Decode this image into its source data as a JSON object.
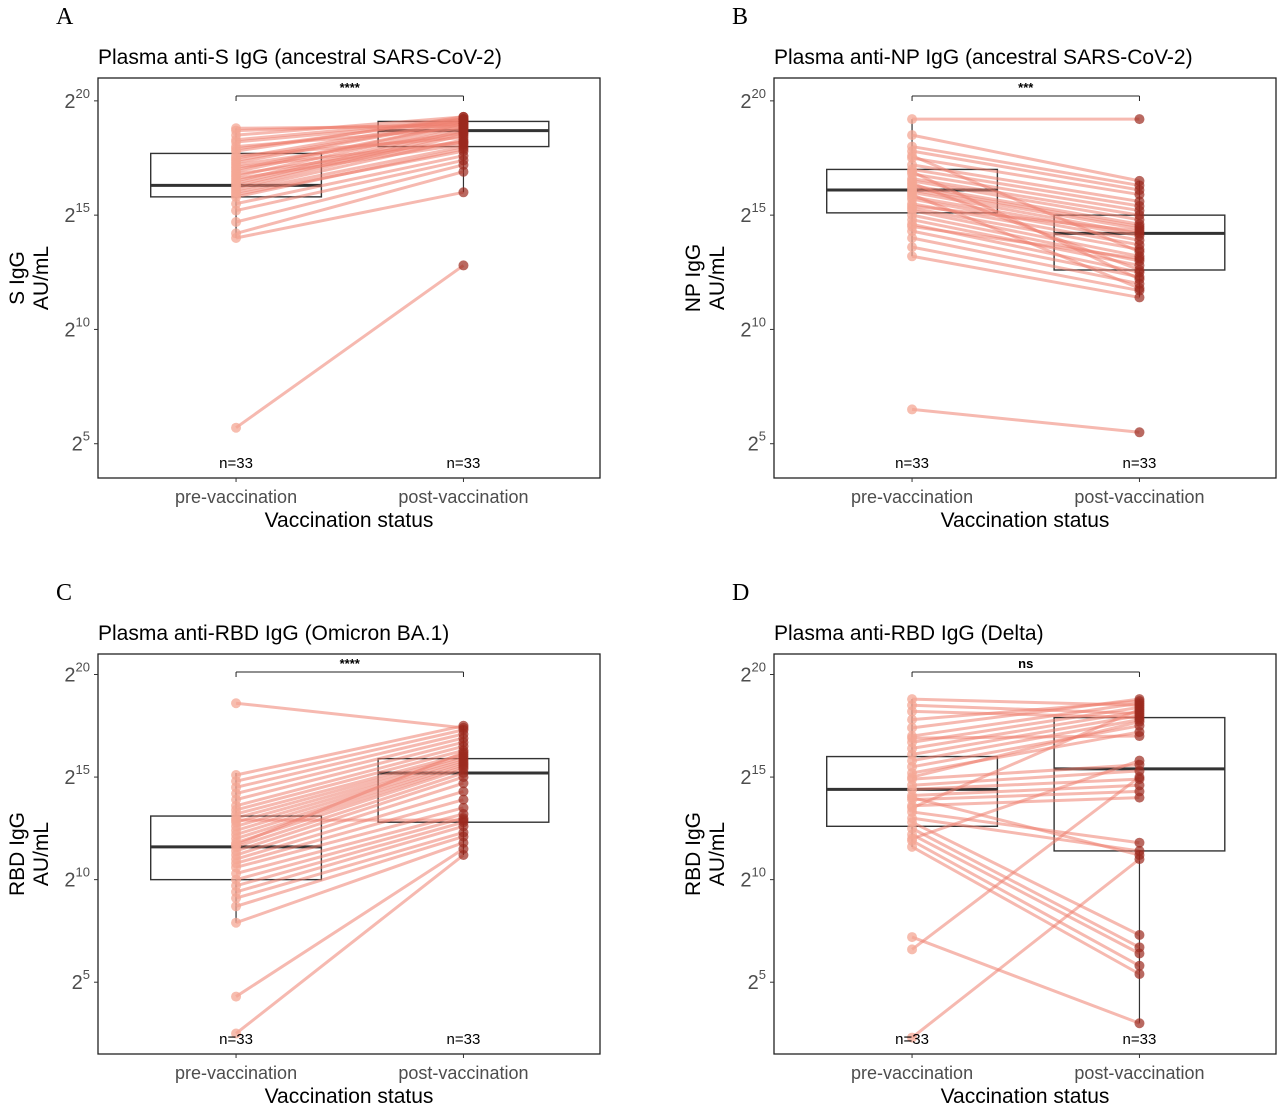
{
  "chart_data": [
    {
      "panel": "A",
      "type": "box",
      "title": "Plasma anti-S IgG (ancestral SARS-CoV-2)",
      "ylabel_line1": "S IgG",
      "ylabel_line2": "AU/mL",
      "xlabel": "Vaccination status",
      "categories": [
        "pre-vaccination",
        "post-vaccination"
      ],
      "y_scale": "log2",
      "ylim_log2": [
        3.5,
        21
      ],
      "y_ticks": [
        {
          "base": "2",
          "exp": "5",
          "log2": 5
        },
        {
          "base": "2",
          "exp": "10",
          "log2": 10
        },
        {
          "base": "2",
          "exp": "15",
          "log2": 15
        },
        {
          "base": "2",
          "exp": "20",
          "log2": 20
        }
      ],
      "n_labels": [
        "n=33",
        "n=33"
      ],
      "significance": "****",
      "boxes": [
        {
          "q1": 15.8,
          "median": 16.3,
          "q3": 17.7
        },
        {
          "q1": 18.0,
          "median": 18.7,
          "q3": 19.1
        }
      ],
      "whiskers": [
        {
          "low": 14.0,
          "high": 18.8
        },
        {
          "low": 16.0,
          "high": 19.4
        }
      ],
      "pairs": [
        [
          5.7,
          12.8
        ],
        [
          14.0,
          16.0
        ],
        [
          14.2,
          16.9
        ],
        [
          14.7,
          17.2
        ],
        [
          15.2,
          17.4
        ],
        [
          15.5,
          17.6
        ],
        [
          15.8,
          17.9
        ],
        [
          16.0,
          18.0
        ],
        [
          16.1,
          18.3
        ],
        [
          16.2,
          18.5
        ],
        [
          16.3,
          18.6
        ],
        [
          16.4,
          18.7
        ],
        [
          16.5,
          18.8
        ],
        [
          16.7,
          18.9
        ],
        [
          16.9,
          19.0
        ],
        [
          17.0,
          19.0
        ],
        [
          17.1,
          18.2
        ],
        [
          17.3,
          19.1
        ],
        [
          17.5,
          19.2
        ],
        [
          17.6,
          18.4
        ],
        [
          17.8,
          19.3
        ],
        [
          17.9,
          19.2
        ],
        [
          18.2,
          19.1
        ],
        [
          18.5,
          19.3
        ],
        [
          18.7,
          19.0
        ],
        [
          18.8,
          18.9
        ],
        [
          16.6,
          18.1
        ],
        [
          15.9,
          17.8
        ],
        [
          17.2,
          18.6
        ],
        [
          16.8,
          18.2
        ],
        [
          18.0,
          18.8
        ],
        [
          17.4,
          19.1
        ],
        [
          18.3,
          19.2
        ]
      ]
    },
    {
      "panel": "B",
      "type": "box",
      "title": "Plasma anti-NP IgG (ancestral SARS-CoV-2)",
      "ylabel_line1": "NP IgG",
      "ylabel_line2": "AU/mL",
      "xlabel": "Vaccination status",
      "categories": [
        "pre-vaccination",
        "post-vaccination"
      ],
      "y_scale": "log2",
      "ylim_log2": [
        3.5,
        21
      ],
      "y_ticks": [
        {
          "base": "2",
          "exp": "5",
          "log2": 5
        },
        {
          "base": "2",
          "exp": "10",
          "log2": 10
        },
        {
          "base": "2",
          "exp": "15",
          "log2": 15
        },
        {
          "base": "2",
          "exp": "20",
          "log2": 20
        }
      ],
      "n_labels": [
        "n=33",
        "n=33"
      ],
      "significance": "***",
      "boxes": [
        {
          "q1": 15.1,
          "median": 16.1,
          "q3": 17.0
        },
        {
          "q1": 12.6,
          "median": 14.2,
          "q3": 15.0
        }
      ],
      "whiskers": [
        {
          "low": 13.2,
          "high": 19.2
        },
        {
          "low": 11.4,
          "high": 16.5
        }
      ],
      "pairs": [
        [
          6.5,
          5.5
        ],
        [
          13.2,
          11.4
        ],
        [
          13.6,
          11.7
        ],
        [
          14.0,
          12.0
        ],
        [
          14.3,
          12.3
        ],
        [
          14.6,
          12.5
        ],
        [
          14.8,
          12.8
        ],
        [
          15.0,
          13.0
        ],
        [
          15.2,
          13.2
        ],
        [
          15.3,
          13.5
        ],
        [
          15.5,
          13.7
        ],
        [
          15.7,
          13.9
        ],
        [
          15.8,
          14.1
        ],
        [
          16.0,
          14.2
        ],
        [
          16.1,
          14.4
        ],
        [
          16.2,
          14.5
        ],
        [
          16.3,
          14.6
        ],
        [
          16.5,
          14.8
        ],
        [
          16.6,
          15.0
        ],
        [
          16.8,
          15.2
        ],
        [
          17.0,
          15.4
        ],
        [
          17.2,
          15.6
        ],
        [
          17.5,
          15.9
        ],
        [
          17.8,
          16.1
        ],
        [
          18.0,
          16.3
        ],
        [
          18.5,
          16.5
        ],
        [
          19.2,
          19.2
        ],
        [
          16.9,
          12.2
        ],
        [
          15.4,
          14.3
        ],
        [
          14.5,
          13.1
        ],
        [
          16.4,
          12.6
        ],
        [
          17.6,
          13.4
        ],
        [
          15.9,
          11.8
        ]
      ]
    },
    {
      "panel": "C",
      "type": "box",
      "title": "Plasma anti-RBD IgG (Omicron BA.1)",
      "ylabel_line1": "RBD IgG",
      "ylabel_line2": "AU/mL",
      "xlabel": "Vaccination status",
      "categories": [
        "pre-vaccination",
        "post-vaccination"
      ],
      "y_scale": "log2",
      "ylim_log2": [
        1.5,
        21
      ],
      "y_ticks": [
        {
          "base": "2",
          "exp": "5",
          "log2": 5
        },
        {
          "base": "2",
          "exp": "10",
          "log2": 10
        },
        {
          "base": "2",
          "exp": "15",
          "log2": 15
        },
        {
          "base": "2",
          "exp": "20",
          "log2": 20
        }
      ],
      "n_labels": [
        "n=33",
        "n=33"
      ],
      "significance": "****",
      "boxes": [
        {
          "q1": 10.0,
          "median": 11.6,
          "q3": 13.1
        },
        {
          "q1": 12.8,
          "median": 15.2,
          "q3": 15.9
        }
      ],
      "whiskers": [
        {
          "low": 7.9,
          "high": 15.2
        },
        {
          "low": 11.2,
          "high": 17.5
        }
      ],
      "pairs": [
        [
          2.5,
          11.2
        ],
        [
          4.3,
          11.5
        ],
        [
          7.9,
          11.8
        ],
        [
          8.7,
          12.1
        ],
        [
          9.1,
          12.3
        ],
        [
          9.4,
          12.6
        ],
        [
          9.7,
          12.8
        ],
        [
          10.0,
          13.0
        ],
        [
          10.3,
          13.2
        ],
        [
          10.6,
          13.5
        ],
        [
          10.8,
          13.9
        ],
        [
          11.0,
          14.3
        ],
        [
          11.2,
          14.7
        ],
        [
          11.4,
          15.0
        ],
        [
          11.6,
          15.2
        ],
        [
          11.8,
          15.4
        ],
        [
          12.0,
          15.5
        ],
        [
          12.2,
          15.6
        ],
        [
          12.4,
          15.7
        ],
        [
          12.6,
          15.8
        ],
        [
          12.8,
          15.9
        ],
        [
          13.0,
          16.0
        ],
        [
          13.2,
          16.1
        ],
        [
          13.4,
          16.3
        ],
        [
          13.6,
          16.5
        ],
        [
          13.9,
          16.7
        ],
        [
          14.2,
          16.9
        ],
        [
          14.5,
          17.1
        ],
        [
          14.8,
          17.3
        ],
        [
          15.1,
          17.5
        ],
        [
          18.6,
          17.4
        ],
        [
          12.9,
          12.9
        ],
        [
          11.7,
          16.2
        ]
      ]
    },
    {
      "panel": "D",
      "type": "box",
      "title": "Plasma anti-RBD IgG (Delta)",
      "ylabel_line1": "RBD IgG",
      "ylabel_line2": "AU/mL",
      "xlabel": "Vaccination status",
      "categories": [
        "pre-vaccination",
        "post-vaccination"
      ],
      "y_scale": "log2",
      "ylim_log2": [
        1.5,
        21
      ],
      "y_ticks": [
        {
          "base": "2",
          "exp": "5",
          "log2": 5
        },
        {
          "base": "2",
          "exp": "10",
          "log2": 10
        },
        {
          "base": "2",
          "exp": "15",
          "log2": 15
        },
        {
          "base": "2",
          "exp": "20",
          "log2": 20
        }
      ],
      "n_labels": [
        "n=33",
        "n=33"
      ],
      "significance": "ns",
      "boxes": [
        {
          "q1": 12.6,
          "median": 14.4,
          "q3": 16.0
        },
        {
          "q1": 11.4,
          "median": 15.4,
          "q3": 17.9
        }
      ],
      "whiskers": [
        {
          "low": 11.6,
          "high": 18.8
        },
        {
          "low": 3.0,
          "high": 18.8
        }
      ],
      "pairs": [
        [
          2.3,
          11.0
        ],
        [
          6.6,
          15.0
        ],
        [
          7.2,
          3.0
        ],
        [
          11.6,
          5.4
        ],
        [
          11.9,
          5.8
        ],
        [
          12.2,
          6.4
        ],
        [
          12.5,
          6.7
        ],
        [
          12.8,
          7.3
        ],
        [
          13.0,
          11.4
        ],
        [
          13.3,
          11.8
        ],
        [
          13.6,
          14.0
        ],
        [
          13.9,
          14.3
        ],
        [
          14.1,
          14.6
        ],
        [
          14.4,
          14.9
        ],
        [
          14.6,
          15.3
        ],
        [
          14.9,
          15.6
        ],
        [
          15.2,
          17.2
        ],
        [
          15.5,
          17.5
        ],
        [
          15.8,
          17.8
        ],
        [
          16.1,
          18.0
        ],
        [
          16.4,
          18.2
        ],
        [
          16.7,
          18.4
        ],
        [
          17.0,
          18.6
        ],
        [
          17.4,
          18.8
        ],
        [
          17.8,
          18.7
        ],
        [
          18.2,
          17.9
        ],
        [
          18.5,
          18.1
        ],
        [
          18.8,
          18.5
        ],
        [
          12.0,
          15.8
        ],
        [
          14.0,
          11.2
        ],
        [
          16.9,
          17.0
        ],
        [
          13.5,
          18.3
        ],
        [
          15.0,
          17.7
        ]
      ]
    }
  ]
}
